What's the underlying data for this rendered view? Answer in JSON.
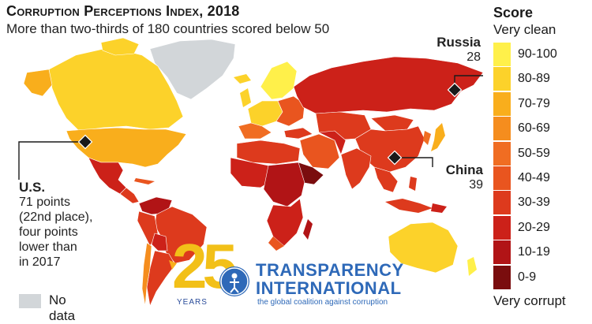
{
  "header": {
    "title_main": "Corruption Perceptions Index",
    "title_year": ", 2018",
    "subtitle": "More than two-thirds of 180 countries scored below 50"
  },
  "legend": {
    "title": "Score",
    "top_label": "Very clean",
    "bottom_label": "Very corrupt",
    "items": [
      {
        "label": "90-100",
        "color": "#fff04a"
      },
      {
        "label": "80-89",
        "color": "#fcd22a"
      },
      {
        "label": "70-79",
        "color": "#f9ae1c"
      },
      {
        "label": "60-69",
        "color": "#f58d1e"
      },
      {
        "label": "50-59",
        "color": "#f06d22"
      },
      {
        "label": "40-49",
        "color": "#e9551f"
      },
      {
        "label": "30-39",
        "color": "#dd3a1d"
      },
      {
        "label": "20-29",
        "color": "#cc2119"
      },
      {
        "label": "10-19",
        "color": "#b11416"
      },
      {
        "label": "0-9",
        "color": "#7a0d0e"
      }
    ],
    "no_data_label": "No data",
    "no_data_color": "#d2d6d9"
  },
  "callouts": {
    "us": {
      "name": "U.S.",
      "text": [
        "71 points",
        "(22nd place),",
        "four points",
        "lower than",
        "in 2017"
      ]
    },
    "russia": {
      "name": "Russia",
      "score": "28"
    },
    "china": {
      "name": "China",
      "score": "39"
    }
  },
  "logo": {
    "number": "25",
    "years": "YEARS",
    "name_line1": "TRANSPARENCY",
    "name_line2": "INTERNATIONAL",
    "tagline": "the global coalition against corruption",
    "brand_color": "#2e69b8",
    "accent_color": "#f2c018"
  }
}
